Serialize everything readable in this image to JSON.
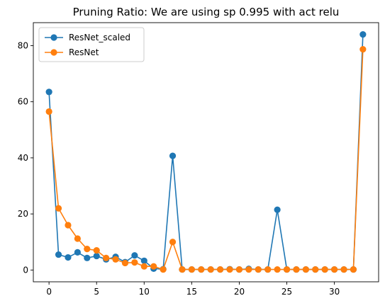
{
  "chart_data": {
    "type": "line",
    "title": "Pruning Ratio: We are using sp 0.995 with act relu",
    "xlabel": "",
    "ylabel": "",
    "xlim": [
      -1.65,
      34.65
    ],
    "ylim": [
      -4.2,
      88.2
    ],
    "xticks": [
      0,
      5,
      10,
      15,
      20,
      25,
      30
    ],
    "yticks": [
      0,
      20,
      40,
      60,
      80
    ],
    "grid": false,
    "legend_position": "upper-left",
    "x": [
      0,
      1,
      2,
      3,
      4,
      5,
      6,
      7,
      8,
      9,
      10,
      11,
      12,
      13,
      14,
      15,
      16,
      17,
      18,
      19,
      20,
      21,
      22,
      23,
      24,
      25,
      26,
      27,
      28,
      29,
      30,
      31,
      32,
      33
    ],
    "series": [
      {
        "name": "ResNet_scaled",
        "color": "#1f77b4",
        "marker": "circle",
        "values": [
          63.5,
          5.5,
          4.5,
          6.3,
          4.3,
          5.0,
          3.8,
          4.7,
          2.8,
          5.2,
          3.3,
          0.5,
          0.3,
          40.7,
          0.2,
          0.2,
          0.2,
          0.2,
          0.2,
          0.3,
          0.2,
          0.4,
          0.2,
          0.2,
          21.5,
          0.2,
          0.2,
          0.2,
          0.2,
          0.2,
          0.2,
          0.2,
          0.2,
          84.0
        ]
      },
      {
        "name": "ResNet",
        "color": "#ff7f0e",
        "marker": "circle",
        "values": [
          56.5,
          22.0,
          16.0,
          11.2,
          7.5,
          7.0,
          4.3,
          3.8,
          2.5,
          2.7,
          1.3,
          1.3,
          0.2,
          10.0,
          0.2,
          0.2,
          0.2,
          0.2,
          0.2,
          0.2,
          0.2,
          0.2,
          0.2,
          0.2,
          0.2,
          0.2,
          0.2,
          0.2,
          0.2,
          0.2,
          0.2,
          0.2,
          0.2,
          78.7
        ]
      }
    ]
  }
}
